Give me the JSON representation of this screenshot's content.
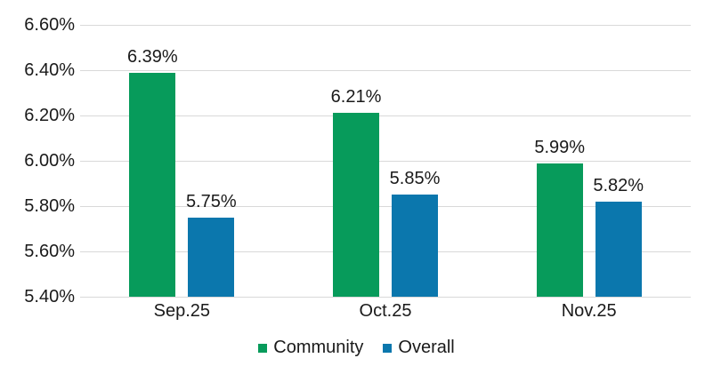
{
  "chart_data": {
    "type": "bar",
    "title": "",
    "categories": [
      "Sep.25",
      "Oct.25",
      "Nov.25"
    ],
    "series": [
      {
        "name": "Community",
        "color": "#079B5B",
        "values": [
          6.39,
          6.21,
          5.99
        ],
        "data_labels": [
          "6.39%",
          "6.21%",
          "5.99%"
        ]
      },
      {
        "name": "Overall",
        "color": "#0B77AD",
        "values": [
          5.75,
          5.85,
          5.82
        ],
        "data_labels": [
          "5.75%",
          "5.85%",
          "5.82%"
        ]
      }
    ],
    "y_axis": {
      "min": 5.4,
      "max": 6.6,
      "tick_values": [
        5.4,
        5.6,
        5.8,
        6.0,
        6.2,
        6.4,
        6.6
      ],
      "tick_labels": [
        "5.40%",
        "5.60%",
        "5.80%",
        "6.00%",
        "6.20%",
        "6.40%",
        "6.60%"
      ]
    },
    "grid": true,
    "legend": {
      "position": "bottom",
      "entries": [
        "Community",
        "Overall"
      ]
    },
    "colors": {
      "gridline": "#D9D9D9",
      "text": "#1A1A1A",
      "background": "#FFFFFF"
    }
  }
}
